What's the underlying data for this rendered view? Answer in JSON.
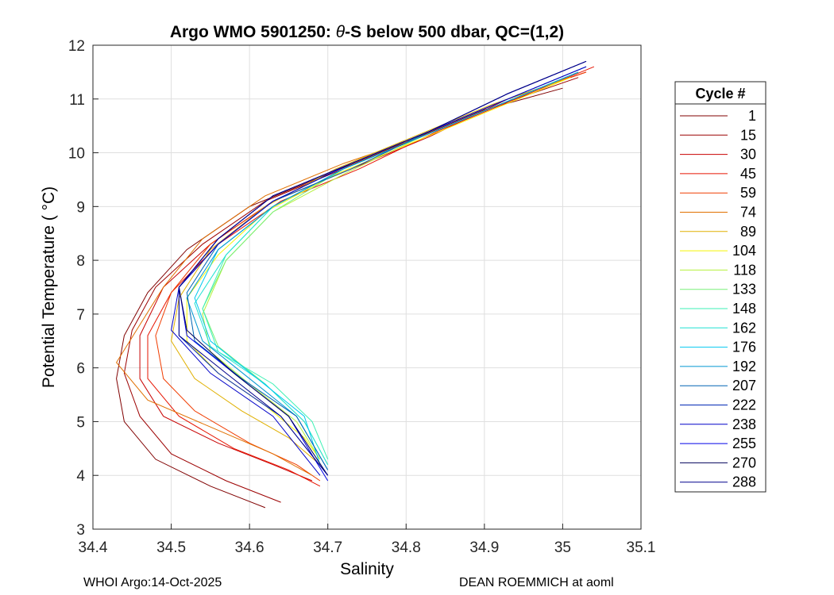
{
  "chart_data": {
    "type": "line",
    "title": "Argo WMO 5901250: θ-S below 500 dbar,  QC=(1,2)",
    "title_prefix": "Argo WMO 5901250: ",
    "title_symbol": "θ",
    "title_suffix": "-S below 500 dbar,  QC=(1,2)",
    "xlabel": "Salinity",
    "ylabel": "Potential Temperature ( °C)",
    "xlim": [
      34.4,
      35.1
    ],
    "ylim": [
      3,
      12
    ],
    "xticks": [
      34.4,
      34.5,
      34.6,
      34.7,
      34.8,
      34.9,
      35,
      35.1
    ],
    "xtick_labels": [
      "34.4",
      "34.5",
      "34.6",
      "34.7",
      "34.8",
      "34.9",
      "35",
      "35.1"
    ],
    "yticks": [
      3,
      4,
      5,
      6,
      7,
      8,
      9,
      10,
      11,
      12
    ],
    "ytick_labels": [
      "3",
      "4",
      "5",
      "6",
      "7",
      "8",
      "9",
      "10",
      "11",
      "12"
    ],
    "grid": true,
    "legend": {
      "title": "Cycle #",
      "placement": "outside-right",
      "entries": [
        {
          "label": "1",
          "color": "#800000"
        },
        {
          "label": "15",
          "color": "#9c0000"
        },
        {
          "label": "30",
          "color": "#c80000"
        },
        {
          "label": "45",
          "color": "#e61400"
        },
        {
          "label": "59",
          "color": "#f03c00"
        },
        {
          "label": "74",
          "color": "#e07000"
        },
        {
          "label": "89",
          "color": "#e0b000"
        },
        {
          "label": "104",
          "color": "#f5f500"
        },
        {
          "label": "118",
          "color": "#b4f03c"
        },
        {
          "label": "133",
          "color": "#78f078"
        },
        {
          "label": "148",
          "color": "#3cf0b4"
        },
        {
          "label": "162",
          "color": "#1ee1d2"
        },
        {
          "label": "176",
          "color": "#00c8f0"
        },
        {
          "label": "192",
          "color": "#0096d2"
        },
        {
          "label": "207",
          "color": "#0064b4"
        },
        {
          "label": "222",
          "color": "#0028b4"
        },
        {
          "label": "238",
          "color": "#0000c8"
        },
        {
          "label": "255",
          "color": "#0000e6"
        },
        {
          "label": "270",
          "color": "#00005a"
        },
        {
          "label": "288",
          "color": "#00008c"
        }
      ]
    },
    "series": [
      {
        "name": "1",
        "color": "#800000",
        "x": [
          35.0,
          34.9,
          34.8,
          34.7,
          34.6,
          34.52,
          34.47,
          34.44,
          34.43,
          34.44,
          34.48,
          34.55,
          34.62
        ],
        "y": [
          11.2,
          10.8,
          10.2,
          9.6,
          9.0,
          8.2,
          7.4,
          6.6,
          5.8,
          5.0,
          4.3,
          3.8,
          3.4
        ]
      },
      {
        "name": "15",
        "color": "#9c0000",
        "x": [
          35.02,
          34.92,
          34.82,
          34.72,
          34.62,
          34.54,
          34.48,
          34.45,
          34.44,
          34.46,
          34.5,
          34.57,
          34.64
        ],
        "y": [
          11.4,
          10.9,
          10.3,
          9.7,
          9.1,
          8.3,
          7.5,
          6.7,
          5.9,
          5.1,
          4.4,
          3.9,
          3.5
        ]
      },
      {
        "name": "30",
        "color": "#c80000",
        "x": [
          35.03,
          34.93,
          34.83,
          34.73,
          34.63,
          34.55,
          34.49,
          34.46,
          34.46,
          34.49,
          34.56,
          34.63,
          34.68
        ],
        "y": [
          11.5,
          11.0,
          10.3,
          9.7,
          9.1,
          8.3,
          7.5,
          6.6,
          5.8,
          5.1,
          4.6,
          4.2,
          3.9
        ]
      },
      {
        "name": "45",
        "color": "#e61400",
        "x": [
          35.04,
          34.94,
          34.84,
          34.74,
          34.64,
          34.56,
          34.5,
          34.47,
          34.47,
          34.51,
          34.58,
          34.65,
          34.69
        ],
        "y": [
          11.6,
          11.0,
          10.4,
          9.7,
          9.1,
          8.3,
          7.4,
          6.6,
          5.8,
          5.1,
          4.5,
          4.1,
          3.8
        ]
      },
      {
        "name": "59",
        "color": "#f03c00",
        "x": [
          35.03,
          34.93,
          34.83,
          34.73,
          34.63,
          34.55,
          34.5,
          34.48,
          34.49,
          34.53,
          34.6,
          34.66,
          34.69
        ],
        "y": [
          11.5,
          11.0,
          10.4,
          9.7,
          9.1,
          8.3,
          7.4,
          6.6,
          5.8,
          5.2,
          4.6,
          4.2,
          3.9
        ]
      },
      {
        "name": "74",
        "color": "#e07000",
        "x": [
          35.02,
          34.92,
          34.82,
          34.72,
          34.62,
          34.54,
          34.49,
          34.46,
          34.43,
          34.47,
          34.55,
          34.63,
          34.68
        ],
        "y": [
          11.5,
          10.9,
          10.3,
          9.8,
          9.2,
          8.4,
          7.5,
          6.8,
          6.1,
          5.4,
          4.9,
          4.4,
          4.0
        ]
      },
      {
        "name": "89",
        "color": "#e0b000",
        "x": [
          35.01,
          34.91,
          34.81,
          34.71,
          34.62,
          34.55,
          34.51,
          34.5,
          34.53,
          34.59,
          34.65,
          34.69
        ],
        "y": [
          11.4,
          10.9,
          10.3,
          9.7,
          9.0,
          8.2,
          7.3,
          6.5,
          5.8,
          5.2,
          4.7,
          4.2
        ]
      },
      {
        "name": "104",
        "color": "#f5f500",
        "x": [
          35.01,
          34.91,
          34.81,
          34.71,
          34.62,
          34.56,
          34.52,
          34.52,
          34.56,
          34.62,
          34.67,
          34.69
        ],
        "y": [
          11.4,
          10.8,
          10.2,
          9.6,
          8.9,
          8.1,
          7.3,
          6.5,
          5.9,
          5.3,
          4.7,
          4.3
        ]
      },
      {
        "name": "118",
        "color": "#b4f03c",
        "x": [
          35.02,
          34.92,
          34.82,
          34.72,
          34.63,
          34.57,
          34.54,
          34.55,
          34.6,
          34.66,
          34.69
        ],
        "y": [
          11.5,
          10.9,
          10.3,
          9.6,
          8.9,
          8.0,
          7.0,
          6.3,
          5.7,
          5.0,
          4.3
        ]
      },
      {
        "name": "133",
        "color": "#78f078",
        "x": [
          35.02,
          34.92,
          34.82,
          34.72,
          34.63,
          34.57,
          34.54,
          34.56,
          34.62,
          34.67,
          34.7
        ],
        "y": [
          11.5,
          10.9,
          10.3,
          9.7,
          8.9,
          8.0,
          7.1,
          6.4,
          5.7,
          5.0,
          4.2
        ]
      },
      {
        "name": "148",
        "color": "#3cf0b4",
        "x": [
          35.02,
          34.92,
          34.82,
          34.72,
          34.63,
          34.57,
          34.54,
          34.56,
          34.63,
          34.68,
          34.7
        ],
        "y": [
          11.5,
          10.9,
          10.3,
          9.7,
          9.0,
          8.1,
          7.1,
          6.3,
          5.7,
          5.0,
          4.3
        ]
      },
      {
        "name": "162",
        "color": "#1ee1d2",
        "x": [
          35.02,
          34.92,
          34.82,
          34.72,
          34.63,
          34.57,
          34.53,
          34.55,
          34.62,
          34.67,
          34.7
        ],
        "y": [
          11.5,
          10.9,
          10.3,
          9.7,
          9.0,
          8.1,
          7.2,
          6.4,
          5.7,
          5.0,
          4.2
        ]
      },
      {
        "name": "176",
        "color": "#00c8f0",
        "x": [
          35.02,
          34.92,
          34.82,
          34.72,
          34.63,
          34.56,
          34.53,
          34.55,
          34.61,
          34.67,
          34.69
        ],
        "y": [
          11.5,
          10.9,
          10.3,
          9.7,
          9.0,
          8.2,
          7.3,
          6.5,
          5.8,
          5.1,
          4.2
        ]
      },
      {
        "name": "192",
        "color": "#0096d2",
        "x": [
          35.02,
          34.92,
          34.82,
          34.72,
          34.63,
          34.56,
          34.52,
          34.54,
          34.6,
          34.66,
          34.7
        ],
        "y": [
          11.5,
          10.9,
          10.3,
          9.7,
          9.0,
          8.2,
          7.3,
          6.5,
          5.8,
          5.1,
          4.1
        ]
      },
      {
        "name": "207",
        "color": "#0064b4",
        "x": [
          35.03,
          34.93,
          34.83,
          34.73,
          34.63,
          34.56,
          34.52,
          34.53,
          34.59,
          34.66,
          34.7
        ],
        "y": [
          11.6,
          11.0,
          10.4,
          9.7,
          9.1,
          8.3,
          7.4,
          6.5,
          5.8,
          5.1,
          4.1
        ]
      },
      {
        "name": "222",
        "color": "#0028b4",
        "x": [
          35.03,
          34.93,
          34.83,
          34.73,
          34.63,
          34.56,
          34.51,
          34.51,
          34.56,
          34.64,
          34.7
        ],
        "y": [
          11.6,
          11.0,
          10.4,
          9.8,
          9.1,
          8.3,
          7.5,
          6.6,
          5.9,
          5.1,
          4.0
        ]
      },
      {
        "name": "238",
        "color": "#0000c8",
        "x": [
          35.03,
          34.93,
          34.83,
          34.73,
          34.63,
          34.56,
          34.51,
          34.5,
          34.55,
          34.63,
          34.69
        ],
        "y": [
          11.6,
          11.0,
          10.4,
          9.8,
          9.1,
          8.3,
          7.5,
          6.7,
          5.9,
          5.1,
          4.0
        ]
      },
      {
        "name": "255",
        "color": "#0000e6",
        "x": [
          35.03,
          34.93,
          34.83,
          34.73,
          34.63,
          34.56,
          34.51,
          34.52,
          34.58,
          34.65,
          34.7
        ],
        "y": [
          11.7,
          11.1,
          10.4,
          9.8,
          9.2,
          8.4,
          7.5,
          6.6,
          5.9,
          5.1,
          3.9
        ]
      },
      {
        "name": "270",
        "color": "#00005a",
        "x": [
          35.03,
          34.93,
          34.83,
          34.73,
          34.63,
          34.56,
          34.51,
          34.52,
          34.58,
          34.65,
          34.7
        ],
        "y": [
          11.7,
          11.1,
          10.4,
          9.8,
          9.2,
          8.4,
          7.5,
          6.7,
          5.9,
          5.1,
          4.0
        ]
      },
      {
        "name": "288",
        "color": "#00008c",
        "x": [
          35.03,
          34.93,
          34.83,
          34.73,
          34.63,
          34.56,
          34.51,
          34.51,
          34.57,
          34.64,
          34.7
        ],
        "y": [
          11.7,
          11.1,
          10.4,
          9.8,
          9.2,
          8.4,
          7.5,
          6.6,
          5.9,
          5.1,
          4.0
        ]
      }
    ]
  },
  "footer": {
    "left": "WHOI Argo:14-Oct-2025",
    "right": "DEAN ROEMMICH at aoml"
  }
}
